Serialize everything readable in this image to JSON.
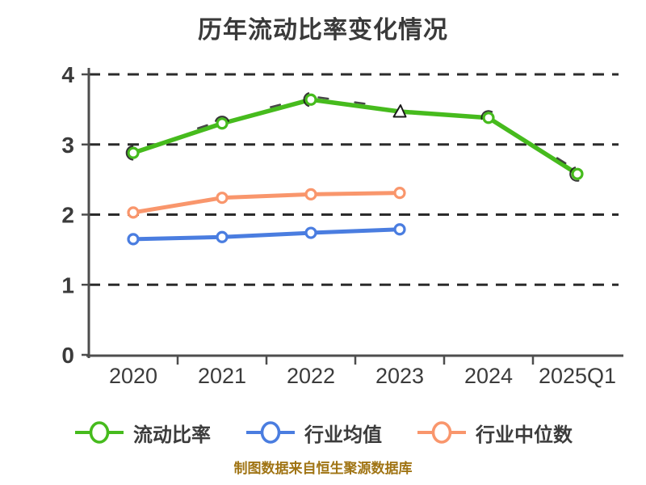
{
  "chart_data": {
    "type": "line",
    "title": "历年流动比率变化情况",
    "categories": [
      "2020",
      "2021",
      "2022",
      "2023",
      "2024",
      "2025Q1"
    ],
    "series": [
      {
        "name": "流动比率",
        "color": "#46bb1d",
        "values": [
          2.88,
          3.3,
          3.64,
          3.47,
          3.38,
          2.58
        ]
      },
      {
        "name": "行业均值",
        "color": "#4a7de0",
        "values": [
          1.65,
          1.68,
          1.74,
          1.79
        ]
      },
      {
        "name": "行业中位数",
        "color": "#f9966c",
        "values": [
          2.03,
          2.24,
          2.29,
          2.31
        ]
      }
    ],
    "ylabel": "",
    "xlabel": "",
    "ylim": [
      0,
      4
    ],
    "yticks": [
      0,
      1,
      2,
      3,
      4
    ],
    "grid": "horizontal-dashed",
    "legend_position": "bottom",
    "marker_style": "white-filled circles with colored rings; 2023 point of 流动比率 drawn as a small white triangle with dark sketch outline"
  },
  "caption": {
    "text": "制图数据来自恒生聚源数据库",
    "color": "#a07414"
  },
  "style": {
    "background": "#ffffff",
    "grid_color": "#2b2b2b",
    "axis_color": "#4d4d4d",
    "tick_text_color": "#3b3b3b",
    "title_color": "#3a3a3a",
    "sketch_color": "#1a1a1a"
  }
}
